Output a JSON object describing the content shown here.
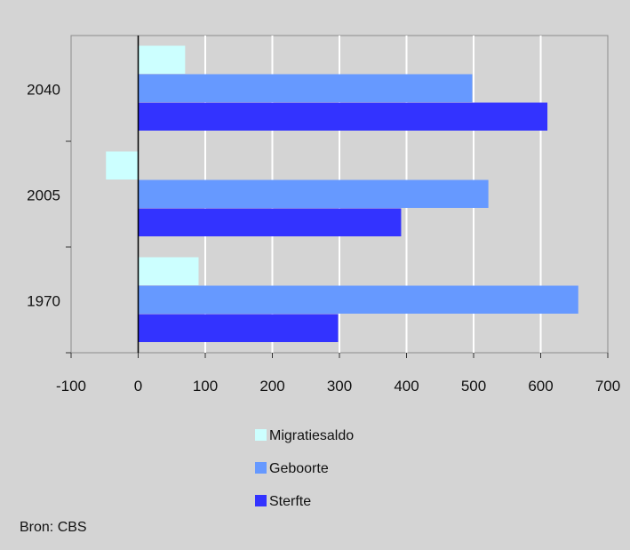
{
  "chart_data": {
    "type": "bar",
    "orientation": "horizontal",
    "categories": [
      "2040",
      "2005",
      "1970"
    ],
    "series": [
      {
        "name": "Migratiesaldo",
        "color": "#ccffff",
        "values": [
          70,
          -48,
          90
        ]
      },
      {
        "name": "Geboorte",
        "color": "#6699ff",
        "values": [
          498,
          522,
          656
        ]
      },
      {
        "name": "Sterfte",
        "color": "#3333ff",
        "values": [
          610,
          392,
          298
        ]
      }
    ],
    "xlim": [
      -100,
      700
    ],
    "xticks": [
      -100,
      0,
      100,
      200,
      300,
      400,
      500,
      600,
      700
    ],
    "grid": true,
    "legend_position": "bottom",
    "title": "",
    "xlabel": "",
    "ylabel": ""
  },
  "footer": {
    "source": "Bron: CBS"
  }
}
